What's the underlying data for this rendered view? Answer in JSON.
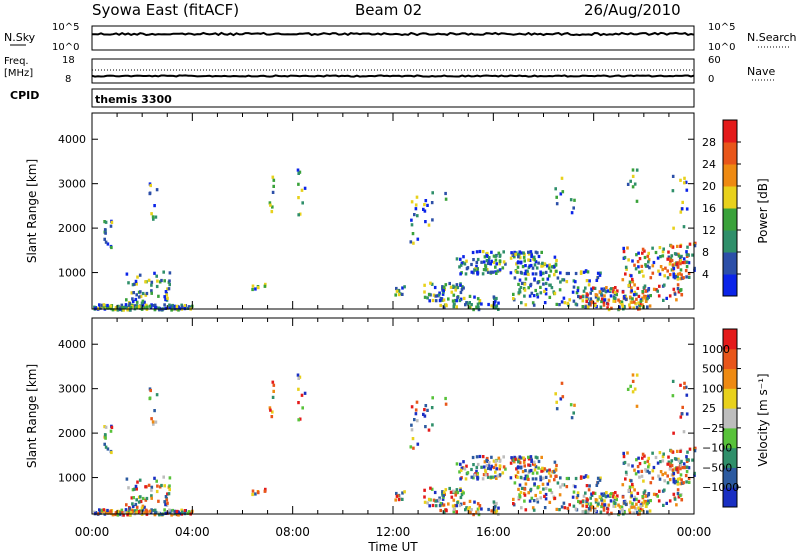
{
  "header": {
    "title": "Syowa East (fitACF)",
    "beam": "Beam 02",
    "date": "26/Aug/2010"
  },
  "noise_panel": {
    "left_label": "N.Sky",
    "left_ticks": [
      "10^5",
      "10^0"
    ],
    "right_label": "N.Search",
    "right_ticks": [
      "10^5",
      "10^0"
    ]
  },
  "freq_panel": {
    "left_label_1": "Freq.",
    "left_label_2": "[MHz]",
    "left_ticks": [
      "18",
      "8"
    ],
    "right_label": "Nave",
    "right_ticks": [
      "60",
      "0"
    ]
  },
  "cpid_panel": {
    "label": "CPID",
    "value": "themis 3300"
  },
  "chart_data": [
    {
      "type": "heatmap",
      "name": "power",
      "ylabel": "Slant Range [km]",
      "xlabel": "",
      "yticks": [
        "1000",
        "2000",
        "3000",
        "4000"
      ],
      "ylim": [
        180,
        4590
      ],
      "xlim": [
        0,
        24
      ],
      "xticks": [
        "00:00",
        "04:00",
        "08:00",
        "12:00",
        "16:00",
        "20:00",
        "00:00"
      ],
      "colorbar": {
        "label": "Power [dB]",
        "ticks": [
          "4",
          "8",
          "12",
          "16",
          "20",
          "24",
          "28"
        ],
        "colors": [
          "#0b24e8",
          "#2c4fa8",
          "#2f8f6a",
          "#3aa23a",
          "#e8d11c",
          "#ee8a12",
          "#e8561a",
          "#e41a1a"
        ]
      }
    },
    {
      "type": "heatmap",
      "name": "velocity",
      "ylabel": "Slant Range [km]",
      "xlabel": "Time UT",
      "yticks": [
        "1000",
        "2000",
        "3000",
        "4000"
      ],
      "ylim": [
        180,
        4590
      ],
      "xlim": [
        0,
        24
      ],
      "xticks": [
        "00:00",
        "04:00",
        "08:00",
        "12:00",
        "16:00",
        "20:00",
        "00:00"
      ],
      "colorbar": {
        "label": "Velocity [m s⁻¹]",
        "ticks": [
          "1000",
          "500",
          "100",
          "25",
          "−25",
          "−100",
          "−500",
          "−1000"
        ],
        "colors": [
          "#1a2fc2",
          "#2c5aa0",
          "#2f8f6a",
          "#58c23a",
          "#bdbdbd",
          "#e8d11c",
          "#ee8a12",
          "#e8561a",
          "#e41a1a"
        ]
      }
    }
  ]
}
